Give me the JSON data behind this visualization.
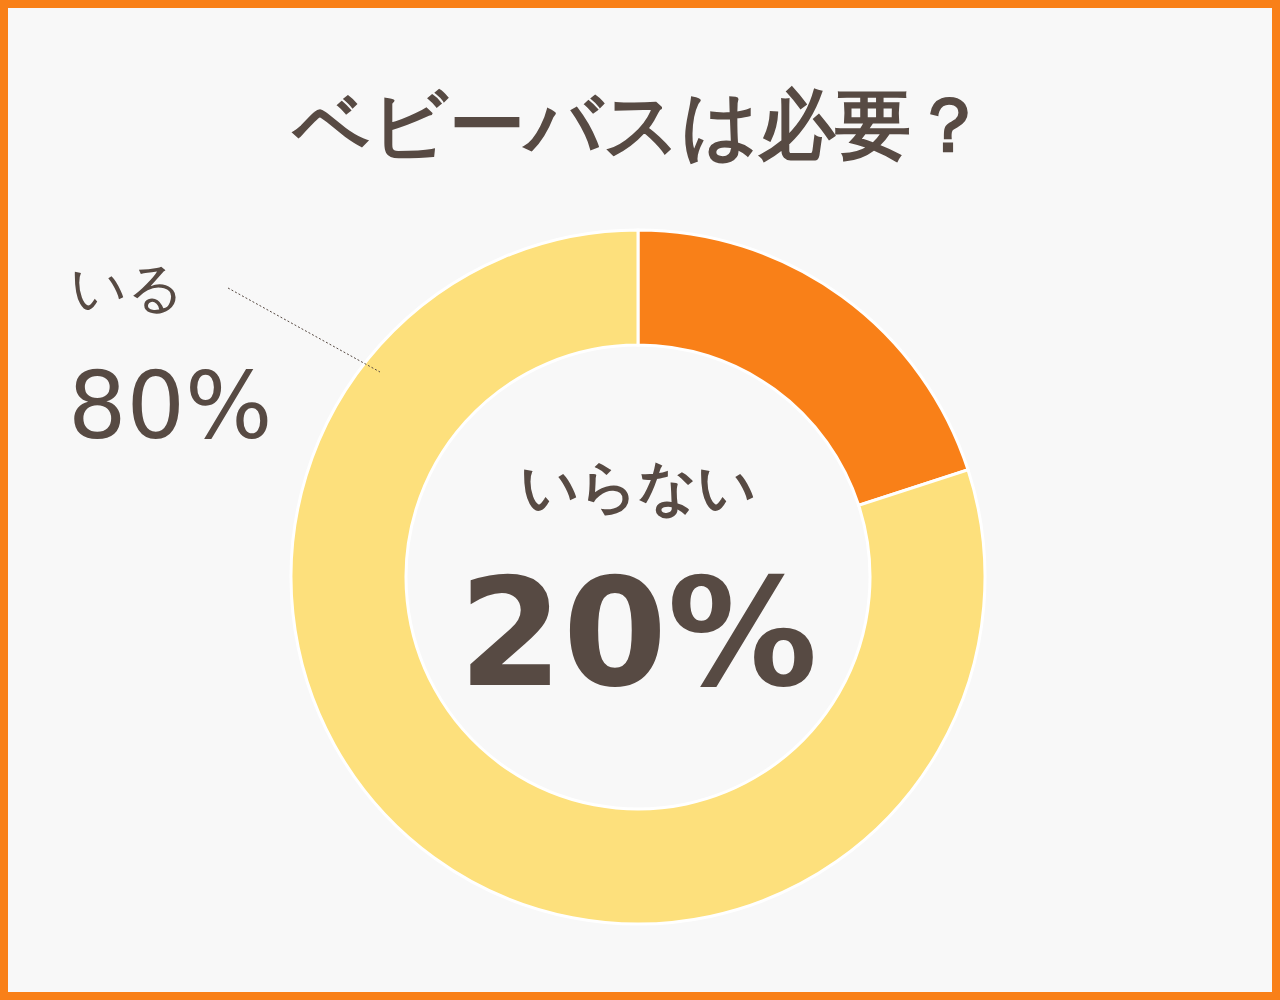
{
  "chart_data": {
    "type": "donut",
    "title": "ベビーバスは必要？",
    "categories": [
      "いらない",
      "いる"
    ],
    "values": [
      20,
      80
    ],
    "colors": [
      "#f98018",
      "#fde07c"
    ],
    "value_labels": [
      "20%",
      "80%"
    ]
  }
}
